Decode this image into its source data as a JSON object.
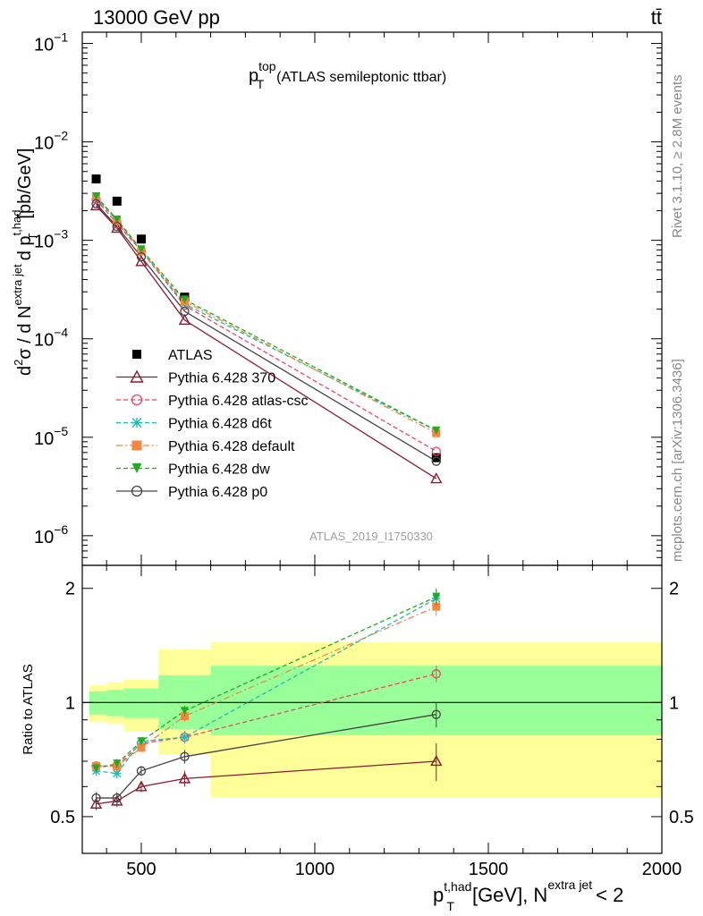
{
  "header": {
    "energy_label": "13000 GeV pp",
    "process_label": "tt̄"
  },
  "side_text": {
    "rivet": "Rivet 3.1.10, ≥ 2.8M events",
    "mcplots": "mcplots.cern.ch [arXiv:1306.3436]"
  },
  "analysis_id": "ATLAS_2019_I1750330",
  "chart_data": [
    {
      "type": "scatter",
      "title": "p_T^top (ATLAS semileptonic ttbar)",
      "title_parts": {
        "main": "p",
        "sub": "T",
        "sup": "top",
        "rest": "(ATLAS semileptonic ttbar)"
      },
      "ylabel": "d²σ / d N^extra jet d p_T^t,had [pb/GeV]",
      "ylabel_parts": {
        "a": "d",
        "a_sup": "2",
        "b": "σ / d N",
        "b_sup": "extra jet",
        "c": "d p",
        "c_sub": "T",
        "c_sup": "t,had",
        "d": "[pb/GeV]"
      },
      "ylog": true,
      "ylim": [
        5e-07,
        0.13
      ],
      "xlim": [
        330,
        2000
      ],
      "y_tick_labels": [
        {
          "base": "10",
          "exp": "−6",
          "value": 1e-06
        },
        {
          "base": "10",
          "exp": "−5",
          "value": 1e-05
        },
        {
          "base": "10",
          "exp": "−4",
          "value": 0.0001
        },
        {
          "base": "10",
          "exp": "−3",
          "value": 0.001
        },
        {
          "base": "10",
          "exp": "−2",
          "value": 0.01
        },
        {
          "base": "10",
          "exp": "−1",
          "value": 0.1
        }
      ],
      "legend_position": "bottom-left",
      "x": [
        370,
        430,
        500,
        625,
        1350
      ],
      "series": [
        {
          "name": "ATLAS",
          "color": "#000000",
          "marker": "square",
          "dash": "none",
          "values": [
            0.0042,
            0.0025,
            0.00103,
            0.000265,
            6.2e-06
          ]
        },
        {
          "name": "Pythia 6.428 370",
          "color": "#8b1a2e",
          "marker": "triangle-open",
          "dash": "solid",
          "values": [
            0.00225,
            0.00133,
            0.00061,
            0.000155,
            3.8e-06
          ]
        },
        {
          "name": "Pythia 6.428 atlas-csc",
          "color": "#ee4466",
          "marker": "circle-open",
          "dash": "dashed",
          "values": [
            0.0026,
            0.00148,
            0.00078,
            0.000218,
            7.2e-06
          ]
        },
        {
          "name": "Pythia 6.428 d6t",
          "color": "#22bbaa",
          "marker": "star",
          "dash": "dashed",
          "values": [
            0.0027,
            0.00158,
            0.00079,
            0.000225,
            1.17e-05
          ]
        },
        {
          "name": "Pythia 6.428 default",
          "color": "#f4873d",
          "marker": "square",
          "dash": "dashdot",
          "values": [
            0.0028,
            0.00158,
            0.00078,
            0.00024,
            1.1e-05
          ]
        },
        {
          "name": "Pythia 6.428 dw",
          "color": "#22aa22",
          "marker": "triangle-down",
          "dash": "dashed",
          "values": [
            0.0028,
            0.00163,
            0.00081,
            0.00025,
            1.17e-05
          ]
        },
        {
          "name": "Pythia 6.428 p0",
          "color": "#444444",
          "marker": "circle-open",
          "dash": "solid",
          "values": [
            0.00235,
            0.00138,
            0.00068,
            0.00019,
            5.7e-06
          ]
        }
      ]
    },
    {
      "type": "scatter",
      "ylabel": "Ratio to ATLAS",
      "ylog": true,
      "ylim": [
        0.4,
        2.3
      ],
      "xlim": [
        330,
        2000
      ],
      "x_ticks": [
        500,
        1000,
        1500,
        2000
      ],
      "y_ticks": [
        0.5,
        1,
        2
      ],
      "xlabel_parts": {
        "a": "p",
        "a_sub": "T",
        "a_sup": "t,had",
        "b": "[GeV], N",
        "b_sup": "extra jet",
        "c": "< 2"
      },
      "bin_edges": [
        350,
        400,
        450,
        550,
        700,
        2000
      ],
      "band_stat": [
        [
          0.93,
          1.07
        ],
        [
          0.92,
          1.08
        ],
        [
          0.91,
          1.09
        ],
        [
          0.85,
          1.18
        ],
        [
          0.82,
          1.25
        ]
      ],
      "band_total": [
        [
          0.89,
          1.11
        ],
        [
          0.88,
          1.13
        ],
        [
          0.84,
          1.15
        ],
        [
          0.73,
          1.38
        ],
        [
          0.56,
          1.44
        ]
      ],
      "reference_line": 1,
      "x": [
        370,
        430,
        500,
        625,
        1350
      ],
      "series": [
        {
          "name": "Pythia 6.428 370",
          "color": "#8b1a2e",
          "marker": "triangle-open",
          "dash": "solid",
          "values": [
            0.54,
            0.55,
            0.6,
            0.63,
            0.7
          ],
          "err": [
            0.02,
            0.02,
            0.02,
            0.03,
            0.08
          ]
        },
        {
          "name": "Pythia 6.428 atlas-csc",
          "color": "#ee4466",
          "marker": "circle-open",
          "dash": "dashed",
          "values": [
            0.68,
            0.68,
            0.78,
            0.81,
            1.19
          ],
          "err": [
            0.02,
            0.02,
            0.02,
            0.03,
            0.06
          ]
        },
        {
          "name": "Pythia 6.428 d6t",
          "color": "#22bbaa",
          "marker": "star",
          "dash": "dashed",
          "values": [
            0.66,
            0.65,
            0.79,
            0.81,
            1.88
          ],
          "err": [
            0.02,
            0.02,
            0.02,
            0.03,
            0.1
          ]
        },
        {
          "name": "Pythia 6.428 default",
          "color": "#f4873d",
          "marker": "square",
          "dash": "dashdot",
          "values": [
            0.68,
            0.68,
            0.76,
            0.92,
            1.79
          ],
          "err": [
            0.02,
            0.02,
            0.02,
            0.03,
            0.1
          ]
        },
        {
          "name": "Pythia 6.428 dw",
          "color": "#22aa22",
          "marker": "triangle-down",
          "dash": "dashed",
          "values": [
            0.67,
            0.69,
            0.79,
            0.95,
            1.9
          ],
          "err": [
            0.02,
            0.02,
            0.02,
            0.03,
            0.1
          ]
        },
        {
          "name": "Pythia 6.428 p0",
          "color": "#444444",
          "marker": "circle-open",
          "dash": "solid",
          "values": [
            0.56,
            0.56,
            0.66,
            0.72,
            0.93
          ],
          "err": [
            0.02,
            0.02,
            0.02,
            0.03,
            0.07
          ]
        }
      ]
    }
  ]
}
